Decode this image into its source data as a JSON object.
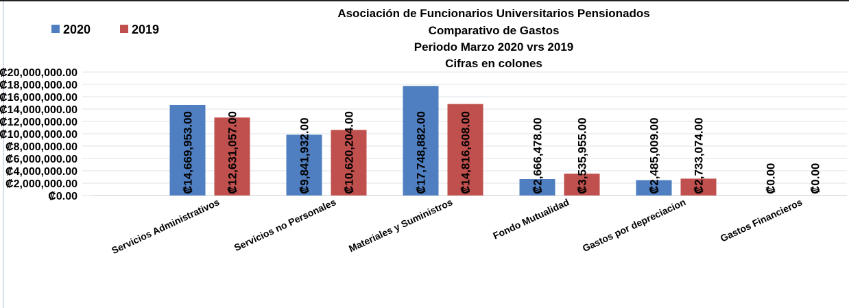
{
  "chart_data": {
    "type": "bar",
    "title": "Asociación de Funcionarios Universitarios Pensionados",
    "subtitle": [
      "Comparativo de Gastos",
      "Periodo Marzo 2020 vrs 2019",
      "Cifras en colones"
    ],
    "categories": [
      "Servicios Administrativos",
      "Servicios no Personales",
      "Materiales y Suministros",
      "Fondo Mutualidad",
      "Gastos por depreciacion",
      "Gastos Financieros"
    ],
    "series": [
      {
        "name": "2020",
        "color": "#4f7fc0",
        "values": [
          14669953,
          9841932,
          17748882,
          2666478,
          2485009,
          0
        ],
        "value_labels": [
          "₡14,669,953.00",
          "₡9,841,932.00",
          "₡17,748,882.00",
          "₡2,666,478.00",
          "₡2,485,009.00",
          "₡0.00"
        ]
      },
      {
        "name": "2019",
        "color": "#c0504d",
        "values": [
          12631057,
          10620204,
          14816608,
          3535955,
          2733074,
          0
        ],
        "value_labels": [
          "₡12,631,057.00",
          "₡10,620,204.00",
          "₡14,816,608.00",
          "₡3,535,955.00",
          "₡2,733,074.00",
          "₡0.00"
        ]
      }
    ],
    "ylim": [
      0,
      20000000
    ],
    "yticks": [
      {
        "value": 0,
        "label": "₡0.00"
      },
      {
        "value": 2000000,
        "label": "₡2,000,000.00"
      },
      {
        "value": 4000000,
        "label": "₡4,000,000.00"
      },
      {
        "value": 6000000,
        "label": "₡6,000,000.00"
      },
      {
        "value": 8000000,
        "label": "₡8,000,000.00"
      },
      {
        "value": 10000000,
        "label": "₡10,000,000.00"
      },
      {
        "value": 12000000,
        "label": "₡12,000,000.00"
      },
      {
        "value": 14000000,
        "label": "₡14,000,000.00"
      },
      {
        "value": 16000000,
        "label": "₡16,000,000.00"
      },
      {
        "value": 18000000,
        "label": "₡18,000,000.00"
      },
      {
        "value": 20000000,
        "label": "₡20,000,000.00"
      }
    ],
    "grid": true,
    "legend": "top-left"
  }
}
